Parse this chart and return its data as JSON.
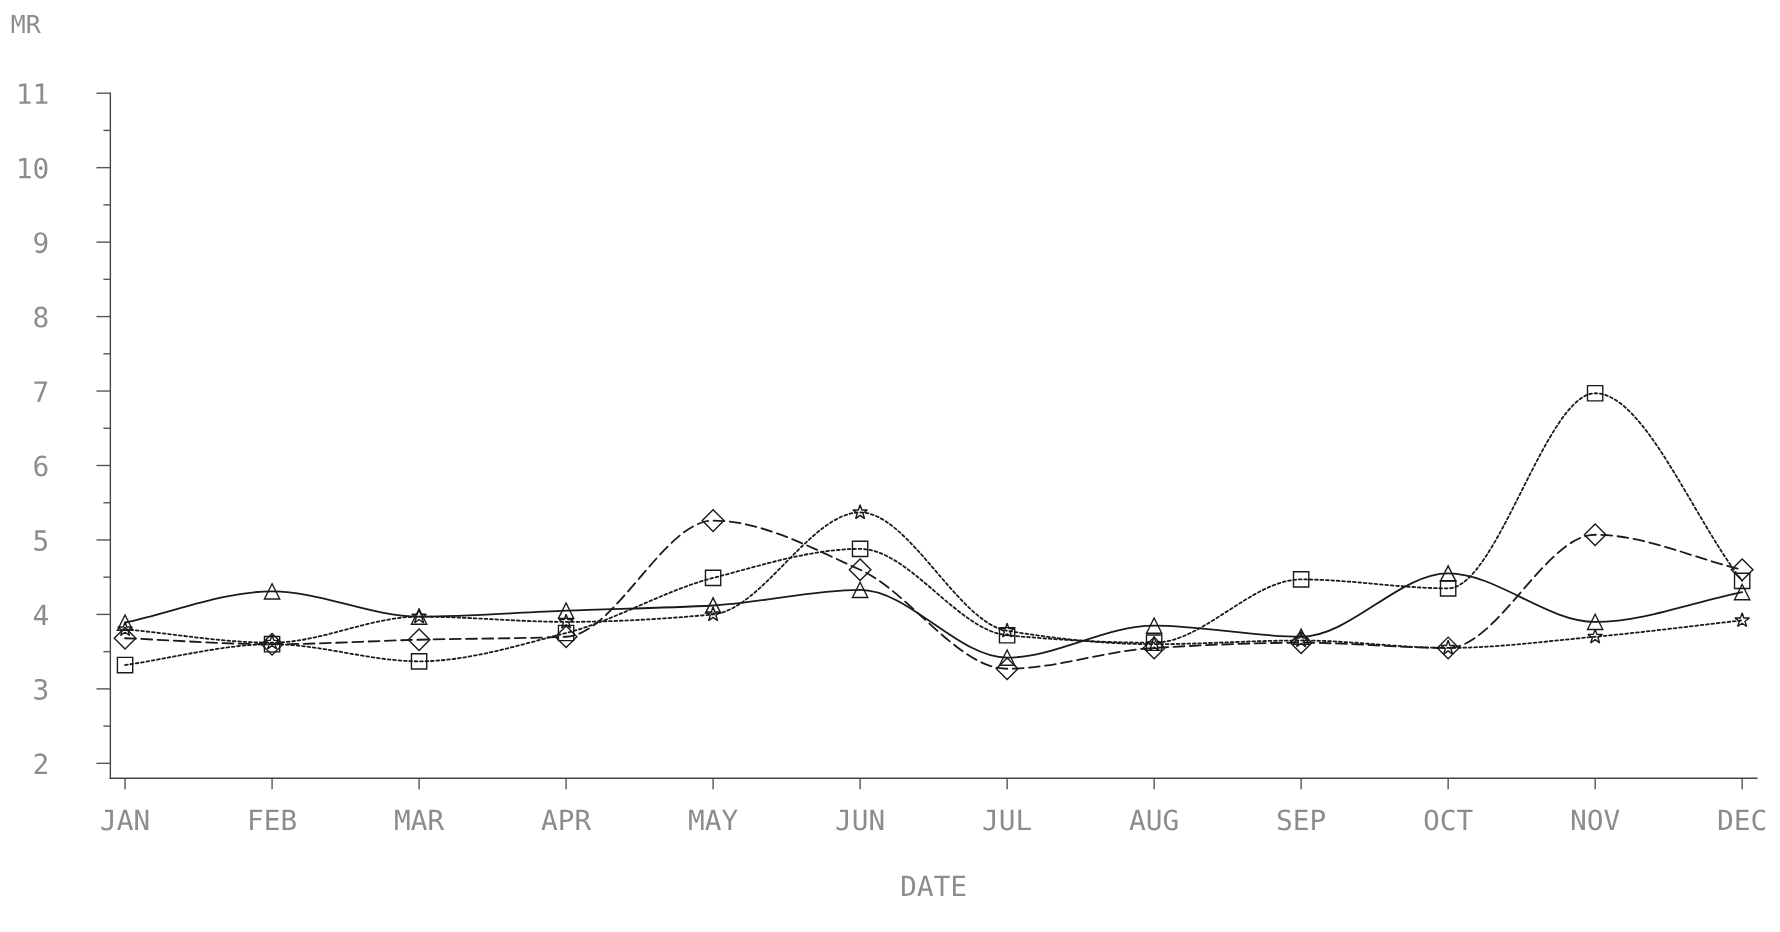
{
  "chart_data": {
    "type": "line",
    "xlabel": "DATE",
    "ylabel": "MR",
    "grid": false,
    "legend": false,
    "categories": [
      "JAN",
      "FEB",
      "MAR",
      "APR",
      "MAY",
      "JUN",
      "JUL",
      "AUG",
      "SEP",
      "OCT",
      "NOV",
      "DEC"
    ],
    "ylim": [
      1.8,
      11
    ],
    "yticks": [
      2,
      {
        "value": 2.5,
        "label": null
      },
      3,
      {
        "value": 3.5,
        "label": null
      },
      4,
      {
        "value": 4.5,
        "label": null
      },
      5,
      {
        "value": 5.5,
        "label": null
      },
      6,
      {
        "value": 6.5,
        "label": null
      },
      7,
      {
        "value": 7.5,
        "label": null
      },
      8,
      {
        "value": 8.5,
        "label": null
      },
      9,
      {
        "value": 9.5,
        "label": null
      },
      10,
      {
        "value": 10.5,
        "label": null
      },
      11
    ],
    "series": [
      {
        "color": "#1a1a1a",
        "marker": "square",
        "line_style": "dotted",
        "values": [
          3.32,
          3.6,
          3.37,
          3.75,
          4.49,
          4.88,
          3.72,
          3.62,
          4.47,
          4.35,
          6.97,
          4.45
        ]
      },
      {
        "color": "#1a1a1a",
        "marker": "diamond",
        "line_style": "dashed",
        "values": [
          3.68,
          3.6,
          3.66,
          3.7,
          5.26,
          4.6,
          3.27,
          3.55,
          3.62,
          3.55,
          5.07,
          4.6
        ]
      },
      {
        "color": "#1a1a1a",
        "marker": "triangle",
        "line_style": "solid",
        "values": [
          3.89,
          4.31,
          3.97,
          4.05,
          4.12,
          4.33,
          3.42,
          3.85,
          3.7,
          4.55,
          3.9,
          4.3
        ]
      },
      {
        "color": "#1a1a1a",
        "marker": "star",
        "line_style": "dotted",
        "values": [
          3.8,
          3.62,
          3.97,
          3.9,
          4.0,
          5.37,
          3.78,
          3.6,
          3.65,
          3.55,
          3.7,
          3.92
        ]
      }
    ]
  }
}
